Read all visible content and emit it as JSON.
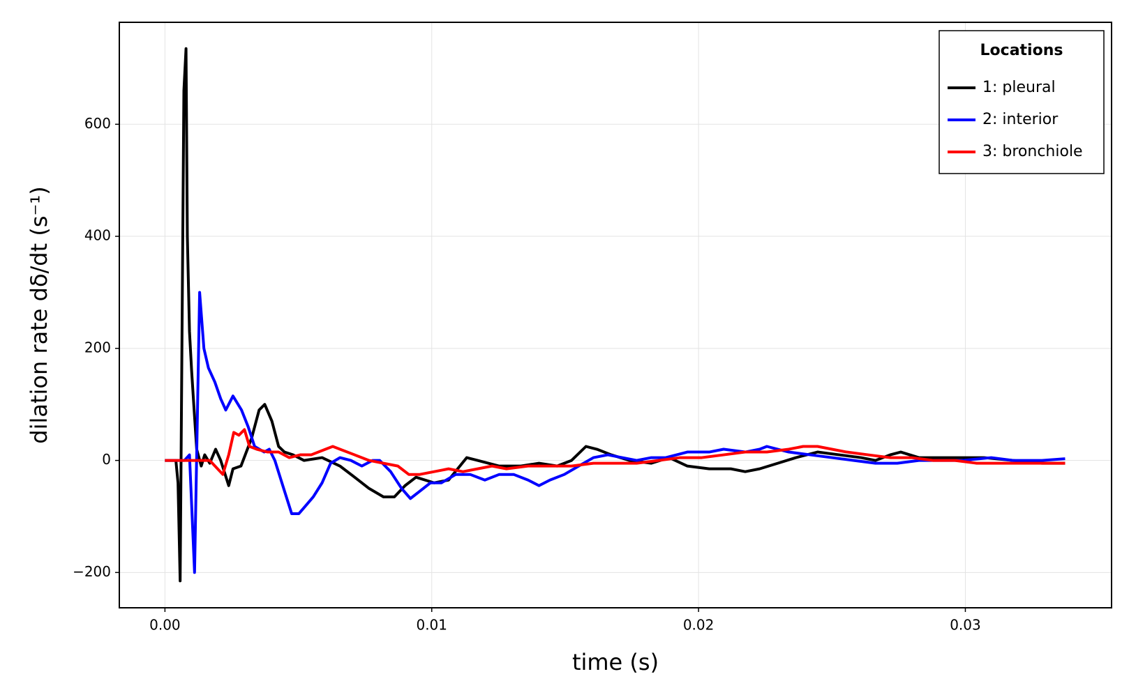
{
  "chart_data": {
    "type": "line",
    "xlabel": "time (s)",
    "ylabel": "dilation rate dδ/dt (s⁻¹)",
    "legend_title": "Locations",
    "legend_position": "top-right",
    "grid": true,
    "xlim": [
      -0.00171,
      0.03548
    ],
    "ylim": [
      -263,
      782
    ],
    "xticks": [
      {
        "value": 0,
        "label": "0.00"
      },
      0.01,
      0.02,
      0.03
    ],
    "yticks": [
      {
        "value": -200,
        "label": "−200"
      },
      0,
      200,
      400,
      600
    ],
    "series": [
      {
        "name": "1: pleural",
        "color": "#000000",
        "x": [
          0,
          0.00041,
          0.00049,
          0.00057,
          0.00071,
          0.00079,
          0.00084,
          0.00092,
          0.001,
          0.00108,
          0.00119,
          0.00136,
          0.00149,
          0.00168,
          0.0019,
          0.00209,
          0.00239,
          0.00255,
          0.00285,
          0.00325,
          0.00353,
          0.00374,
          0.00401,
          0.00426,
          0.00448,
          0.0048,
          0.00521,
          0.00589,
          0.00656,
          0.00711,
          0.00765,
          0.00819,
          0.0086,
          0.009,
          0.00941,
          0.01009,
          0.01063,
          0.01131,
          0.01172,
          0.01253,
          0.01334,
          0.01402,
          0.0147,
          0.01524,
          0.01578,
          0.01619,
          0.01673,
          0.01741,
          0.01823,
          0.0189,
          0.01958,
          0.0204,
          0.02121,
          0.02175,
          0.02229,
          0.02297,
          0.02365,
          0.02446,
          0.02528,
          0.02609,
          0.02663,
          0.02718,
          0.02758,
          0.02826,
          0.02907,
          0.02989,
          0.0307,
          0.03179,
          0.03287,
          0.03374
        ],
        "values": [
          0,
          0,
          -40,
          -215,
          660,
          735,
          400,
          230,
          160,
          100,
          20,
          -10,
          10,
          -5,
          20,
          0,
          -45,
          -15,
          -10,
          40,
          90,
          100,
          70,
          25,
          15,
          10,
          0,
          5,
          -10,
          -30,
          -50,
          -65,
          -65,
          -45,
          -30,
          -40,
          -35,
          5,
          0,
          -10,
          -10,
          -5,
          -10,
          0,
          25,
          20,
          10,
          0,
          -5,
          5,
          -10,
          -15,
          -15,
          -20,
          -15,
          -5,
          5,
          15,
          10,
          5,
          0,
          10,
          15,
          5,
          5,
          5,
          5,
          0,
          -5,
          -5
        ]
      },
      {
        "name": "2: interior",
        "color": "#0000ff",
        "x": [
          0,
          0.00073,
          0.00092,
          0.00111,
          0.0013,
          0.00146,
          0.00163,
          0.00187,
          0.00209,
          0.00228,
          0.00255,
          0.00287,
          0.00312,
          0.00336,
          0.00372,
          0.00391,
          0.00412,
          0.00445,
          0.00475,
          0.00502,
          0.00529,
          0.00556,
          0.00589,
          0.00621,
          0.00656,
          0.00697,
          0.00738,
          0.00778,
          0.00805,
          0.00846,
          0.00887,
          0.0092,
          0.00955,
          0.00995,
          0.01036,
          0.0109,
          0.01144,
          0.01199,
          0.01253,
          0.01307,
          0.01361,
          0.01402,
          0.01443,
          0.01497,
          0.01551,
          0.01606,
          0.0166,
          0.01714,
          0.01768,
          0.01823,
          0.01877,
          0.01958,
          0.0204,
          0.02094,
          0.02175,
          0.02229,
          0.02256,
          0.02338,
          0.02419,
          0.025,
          0.02582,
          0.02663,
          0.02745,
          0.02826,
          0.02907,
          0.02989,
          0.03097,
          0.03179,
          0.03287,
          0.03374
        ],
        "values": [
          0,
          0,
          10,
          -200,
          300,
          200,
          165,
          140,
          110,
          90,
          115,
          90,
          60,
          25,
          15,
          20,
          0,
          -50,
          -95,
          -95,
          -80,
          -65,
          -40,
          -5,
          5,
          0,
          -10,
          0,
          0,
          -20,
          -50,
          -68,
          -55,
          -40,
          -40,
          -25,
          -25,
          -35,
          -25,
          -25,
          -35,
          -45,
          -35,
          -25,
          -10,
          5,
          10,
          5,
          0,
          5,
          5,
          15,
          15,
          20,
          15,
          20,
          25,
          15,
          10,
          5,
          0,
          -5,
          -5,
          0,
          0,
          0,
          5,
          0,
          0,
          3
        ]
      },
      {
        "name": "3: bronchiole",
        "color": "#ff0000",
        "x": [
          0,
          0.00168,
          0.00217,
          0.00239,
          0.00258,
          0.00277,
          0.00298,
          0.00317,
          0.00344,
          0.00385,
          0.00426,
          0.00466,
          0.00507,
          0.00548,
          0.00602,
          0.00629,
          0.00656,
          0.00711,
          0.00765,
          0.00819,
          0.00873,
          0.00914,
          0.00955,
          0.01009,
          0.01063,
          0.01117,
          0.01172,
          0.01226,
          0.0128,
          0.01361,
          0.01443,
          0.01524,
          0.01606,
          0.01687,
          0.01768,
          0.0185,
          0.01931,
          0.02012,
          0.02094,
          0.02175,
          0.02256,
          0.02338,
          0.02392,
          0.02446,
          0.025,
          0.02555,
          0.02636,
          0.02718,
          0.02798,
          0.0288,
          0.02961,
          0.03042,
          0.03179,
          0.03287,
          0.03374
        ],
        "values": [
          0,
          0,
          -25,
          10,
          50,
          45,
          55,
          25,
          20,
          15,
          15,
          5,
          10,
          10,
          20,
          25,
          20,
          10,
          0,
          -5,
          -10,
          -25,
          -25,
          -20,
          -15,
          -20,
          -15,
          -10,
          -15,
          -10,
          -10,
          -10,
          -5,
          -5,
          -5,
          0,
          5,
          5,
          10,
          15,
          15,
          20,
          25,
          25,
          20,
          15,
          10,
          5,
          5,
          0,
          0,
          -5,
          -5,
          -5,
          -5
        ]
      }
    ]
  }
}
